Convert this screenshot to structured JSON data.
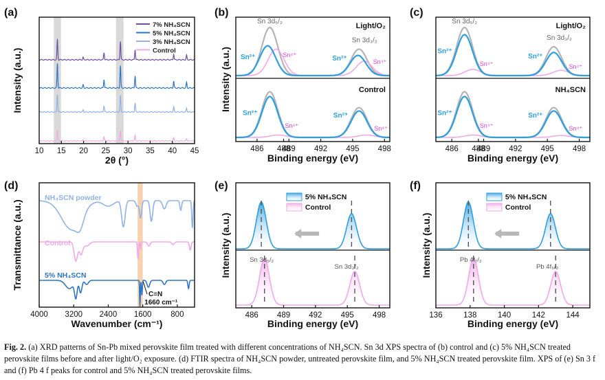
{
  "figure_label": "Fig. 2.",
  "caption": "(a) XRD patterns of Sn-Pb mixed perovskite film treated with different concentrations of NH₄SCN. Sn 3d XPS spectra of (b) control and (c) 5% NH₄SCN treated perovskite films before and after light/O₂ exposure. (d) FTIR spectra of NH₄SCN powder, untreated perovskite film, and 5% NH₄SCN treated perovskite film. XPS of (e) Sn 3 f and (f) Pb 4 f peaks for control and 5% NH₄SCN treated perovskite films.",
  "colors": {
    "purple": "#6b4fa0",
    "blue": "#2e74c4",
    "lightblue": "#8fb3e6",
    "pink": "#f0a8e8",
    "gray": "#b4b4b4",
    "cyan": "#2e9ee0",
    "magenta": "#e040d8",
    "highlight": "#d9d9d9",
    "orange": "#f7d2b0",
    "arrow": "#b9b9b9"
  },
  "chart_data": [
    {
      "id": "a",
      "panel_label": "(a)",
      "type": "line",
      "xlabel": "2θ (°)",
      "ylabel": "Intensity (a.u.)",
      "xlim": [
        10,
        45
      ],
      "xticks": [
        "10",
        "15",
        "20",
        "25",
        "30",
        "35",
        "40",
        "45"
      ],
      "highlight_ranges": [
        [
          13.3,
          14.9
        ],
        [
          27.3,
          29.0
        ]
      ],
      "peaks": [
        [
          14.1,
          1.0
        ],
        [
          19.9,
          0.12
        ],
        [
          24.6,
          0.35
        ],
        [
          28.3,
          0.9
        ],
        [
          31.6,
          0.5
        ],
        [
          40.3,
          0.28
        ],
        [
          43.2,
          0.22
        ]
      ],
      "series": [
        {
          "name": "7% NH₄SCN",
          "offset": 3,
          "scale": 30,
          "color_key": "purple"
        },
        {
          "name": "5% NH₄SCN",
          "offset": 2,
          "scale": 36,
          "color_key": "blue"
        },
        {
          "name": "3% NH₄SCN",
          "offset": 1,
          "scale": 26,
          "color_key": "lightblue"
        },
        {
          "name": "Control",
          "offset": 0,
          "scale": 16,
          "color_key": "pink"
        }
      ]
    },
    {
      "id": "b",
      "panel_label": "(b)",
      "type": "line",
      "xlabel": "Binding energy (eV)",
      "ylabel": "Intensity (a.u.)",
      "xlim": [
        484,
        498.5
      ],
      "xticks": [
        "486",
        "488",
        "489",
        "492",
        "495",
        "498"
      ],
      "xtick_values": [
        486,
        488.5,
        489,
        492,
        495,
        498
      ],
      "subpanels": [
        {
          "title": "Light/O₂",
          "total": [
            [
              487.2,
              1.0
            ],
            [
              495.6,
              0.55
            ]
          ],
          "sn2": [
            [
              487.0,
              0.62
            ],
            [
              495.5,
              0.42
            ]
          ],
          "sn4": [
            [
              487.8,
              0.55
            ],
            [
              496.1,
              0.3
            ]
          ],
          "labels": {
            "main": "Sn 3d₅/₂",
            "main2": "Sn 3d₃/₂",
            "sn2a": "Sn²⁺",
            "sn4a": "Sn⁴⁺",
            "sn2b": "Sn²⁺",
            "sn4b": "Sn⁴⁺"
          }
        },
        {
          "title": "Control",
          "total": [
            [
              487.2,
              0.95
            ],
            [
              495.6,
              0.62
            ]
          ],
          "sn2": [
            [
              487.2,
              0.85
            ],
            [
              495.6,
              0.55
            ]
          ],
          "sn4": [
            [
              488.0,
              0.05
            ],
            [
              496.3,
              0.05
            ]
          ],
          "labels": {
            "sn2a": "Sn²⁺",
            "sn4a": "Sn⁴⁺",
            "sn2b": "Sn²⁺",
            "sn4b": "Sn⁴⁺"
          }
        }
      ]
    },
    {
      "id": "c",
      "panel_label": "(c)",
      "type": "line",
      "xlabel": "Binding energy (eV)",
      "ylabel": "",
      "xlim": [
        484.5,
        499
      ],
      "xticks": [
        "486",
        "488",
        "489",
        "492",
        "495",
        "498"
      ],
      "xtick_values": [
        486,
        488.5,
        489,
        492,
        495,
        498
      ],
      "subpanels": [
        {
          "title": "Light/O₂",
          "total": [
            [
              487.2,
              1.0
            ],
            [
              495.6,
              0.6
            ]
          ],
          "sn2": [
            [
              487.2,
              0.85
            ],
            [
              495.6,
              0.48
            ]
          ],
          "sn4": [
            [
              488.0,
              0.13
            ],
            [
              496.3,
              0.11
            ]
          ],
          "labels": {
            "main": "Sn 3d₅/₂",
            "main2": "Sn 3d₃/₂",
            "sn2a": "Sn²⁺",
            "sn4a": "Sn⁴⁺",
            "sn2b": "Sn²⁺",
            "sn4b": "Sn⁴⁺"
          }
        },
        {
          "title": "NH₄SCN",
          "total": [
            [
              487.2,
              0.95
            ],
            [
              495.6,
              0.62
            ]
          ],
          "sn2": [
            [
              487.2,
              0.85
            ],
            [
              495.6,
              0.55
            ]
          ],
          "sn4": [
            [
              488.0,
              0.05
            ],
            [
              496.3,
              0.04
            ]
          ],
          "labels": {
            "sn2a": "Sn²⁺",
            "sn4a": "Sn⁴⁺",
            "sn2b": "Sn²⁺",
            "sn4b": "Sn⁴⁺"
          }
        }
      ]
    },
    {
      "id": "d",
      "panel_label": "(d)",
      "type": "line",
      "xlabel": "Wavenumber (cm⁻¹)",
      "ylabel": "Transmittance (a.u.)",
      "xlim": [
        4000,
        400
      ],
      "xticks": [
        "4000",
        "3200",
        "2400",
        "1600",
        "800"
      ],
      "xtick_values": [
        4000,
        3200,
        2400,
        1600,
        800
      ],
      "highlight": [
        1720,
        1600
      ],
      "series": [
        {
          "name": "NH₄SCN powder",
          "color_key": "lightblue"
        },
        {
          "name": "Control",
          "color_key": "pink"
        },
        {
          "name": "5% NH₄SCN",
          "color_key": "blue"
        }
      ],
      "annotation": {
        "bond": "C≡N",
        "value": "1660 cm⁻¹"
      }
    },
    {
      "id": "e",
      "panel_label": "(e)",
      "type": "area",
      "xlabel": "Binding energy (eV)",
      "ylabel": "Intensity (a.u.)",
      "xlim": [
        484.5,
        499
      ],
      "xticks": [
        "486",
        "489",
        "492",
        "495",
        "498"
      ],
      "xtick_values": [
        486,
        489,
        492,
        495,
        498
      ],
      "legend": [
        "5% NH₄SCN",
        "Control"
      ],
      "top_peaks": [
        [
          486.9,
          1.0
        ],
        [
          495.4,
          0.75
        ]
      ],
      "bottom_peaks": [
        [
          487.2,
          1.0
        ],
        [
          495.7,
          0.72
        ]
      ],
      "peak_labels": [
        "Sn 3d₅/₂",
        "Sn 3d₃/₂"
      ]
    },
    {
      "id": "f",
      "panel_label": "(f)",
      "type": "area",
      "xlabel": "Binding energy (eV)",
      "ylabel": "Intensity (a.u.)",
      "xlim": [
        136,
        145
      ],
      "xticks": [
        "136",
        "138",
        "140",
        "142",
        "144"
      ],
      "xtick_values": [
        136,
        138,
        140,
        142,
        144
      ],
      "legend": [
        "5% NH₄SCN",
        "Control"
      ],
      "top_peaks": [
        [
          137.9,
          1.0
        ],
        [
          142.7,
          0.75
        ]
      ],
      "bottom_peaks": [
        [
          138.2,
          1.0
        ],
        [
          143.0,
          0.72
        ]
      ],
      "peak_labels": [
        "Pb 4f₇/₂",
        "Pb 4f₅/₂"
      ]
    }
  ]
}
